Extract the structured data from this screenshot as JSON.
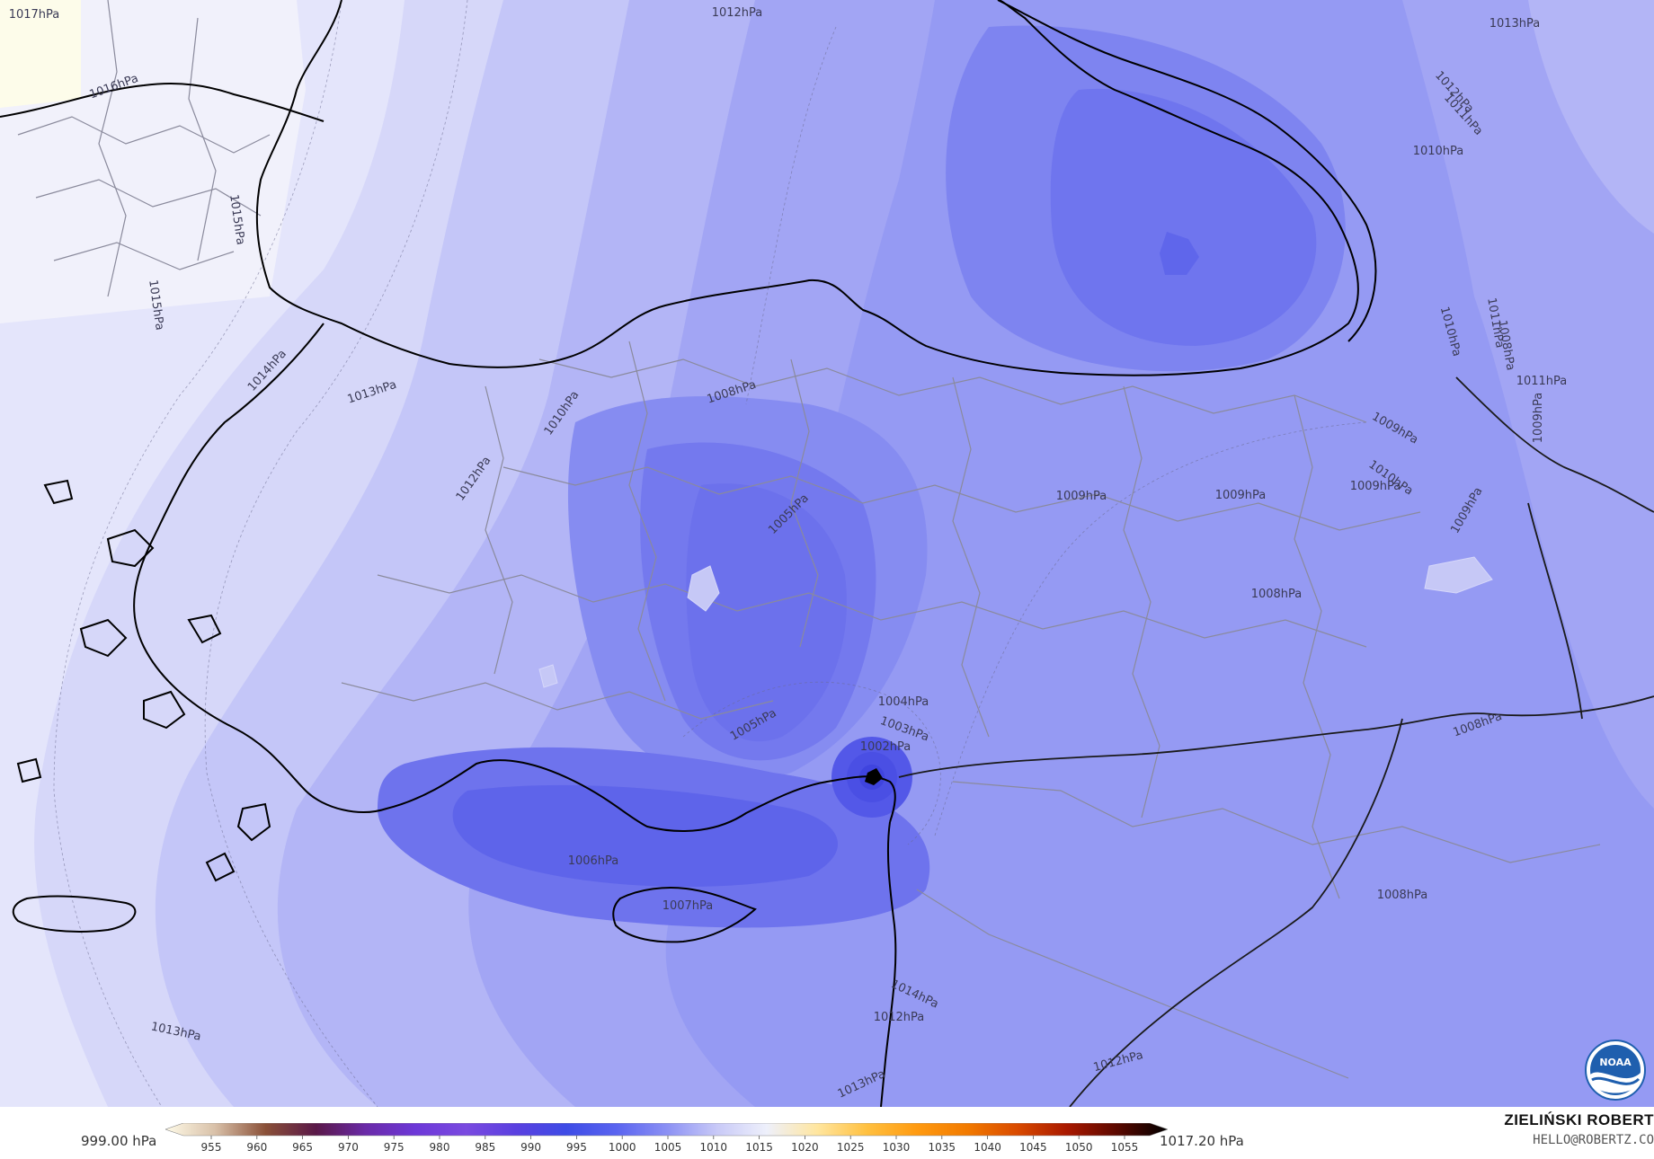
{
  "colors": {
    "background": "#e4e5fb",
    "coastline": "#000000",
    "borders": "#8a8a9c",
    "low_core": "#4a53e6"
  },
  "map": {
    "isobar_labels": [
      "1017hPa",
      "1016hPa",
      "1015hPa",
      "1015hPa",
      "1014hPa",
      "1013hPa",
      "1012hPa",
      "1012hPa",
      "1013hPa",
      "1012hPa",
      "1011hPa",
      "1010hPa",
      "1010hPa",
      "1009hPa",
      "1008hPa",
      "1010hPa",
      "1009hPa",
      "1009hPa",
      "1005hPa",
      "1008hPa",
      "1004hPa",
      "1005hPa",
      "1003hPa",
      "1002hPa",
      "1006hPa",
      "1007hPa",
      "1008hPa",
      "1008hPa",
      "1013hPa",
      "1014hPa",
      "1012hPa",
      "1013hPa",
      "1012hPa",
      "1010hPa",
      "1009hPa",
      "1008hPa",
      "1011hPa",
      "1011hPa",
      "1009hPa",
      "1009hPa"
    ],
    "noaa_logo_text": "NOAA"
  },
  "colorbar": {
    "min_label": "999.00 hPa",
    "max_label": "1017.20 hPa",
    "ticks": [
      "955",
      "960",
      "965",
      "970",
      "975",
      "980",
      "985",
      "990",
      "995",
      "1000",
      "1005",
      "1010",
      "1015",
      "1020",
      "1025",
      "1030",
      "1035",
      "1040",
      "1045",
      "1050",
      "1055"
    ],
    "stops": [
      "#fffbe8",
      "#d8c0a8",
      "#8a5038",
      "#5a1848",
      "#6a2aa8",
      "#6d38d8",
      "#7a4ae0",
      "#5a40e0",
      "#3e4ce6",
      "#5a64f0",
      "#8b90f4",
      "#c8c9f7",
      "#eef0fb",
      "#ffe6a0",
      "#ffc040",
      "#ff9a10",
      "#f27a00",
      "#d94a00",
      "#a81800",
      "#5a0800",
      "#000000"
    ]
  },
  "credit": {
    "name": "ZIELIŃSKI ROBERT",
    "email": "HELLO@ROBERTZ.CO"
  }
}
